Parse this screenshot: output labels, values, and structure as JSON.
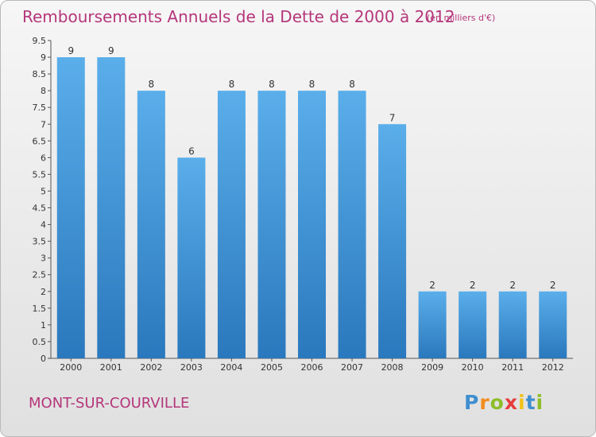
{
  "header": {
    "title": "Remboursements Annuels de la Dette de 2000 à 2012",
    "subtitle": "(en milliers d'€)"
  },
  "footer": {
    "commune": "MONT-SUR-COURVILLE",
    "logo_text": "Proxiti"
  },
  "colors": {
    "title": "#b5367a",
    "bar_top": "#5aaeea",
    "bar_bottom": "#2a78bd"
  },
  "chart_data": {
    "type": "bar",
    "title": "Remboursements Annuels de la Dette de 2000 à 2012",
    "subtitle": "(en milliers d'€)",
    "categories": [
      "2000",
      "2001",
      "2002",
      "2003",
      "2004",
      "2005",
      "2006",
      "2007",
      "2008",
      "2009",
      "2010",
      "2011",
      "2012"
    ],
    "values": [
      9,
      9,
      8,
      6,
      8,
      8,
      8,
      8,
      7,
      2,
      2,
      2,
      2
    ],
    "data_labels": [
      "9",
      "9",
      "8",
      "6",
      "8",
      "8",
      "8",
      "8",
      "7",
      "2",
      "2",
      "2",
      "2"
    ],
    "ylim": [
      0,
      9.5
    ],
    "yticks": [
      0,
      0.5,
      1,
      1.5,
      2,
      2.5,
      3,
      3.5,
      4,
      4.5,
      5,
      5.5,
      6,
      6.5,
      7,
      7.5,
      8,
      8.5,
      9,
      9.5
    ],
    "ytick_labels": [
      "0",
      "0.5",
      "1",
      "1.5",
      "2",
      "2.5",
      "3",
      "3.5",
      "4",
      "4.5",
      "5",
      "5.5",
      "6",
      "6.5",
      "7",
      "7.5",
      "8",
      "8.5",
      "9",
      "9.5"
    ],
    "grid": false
  }
}
